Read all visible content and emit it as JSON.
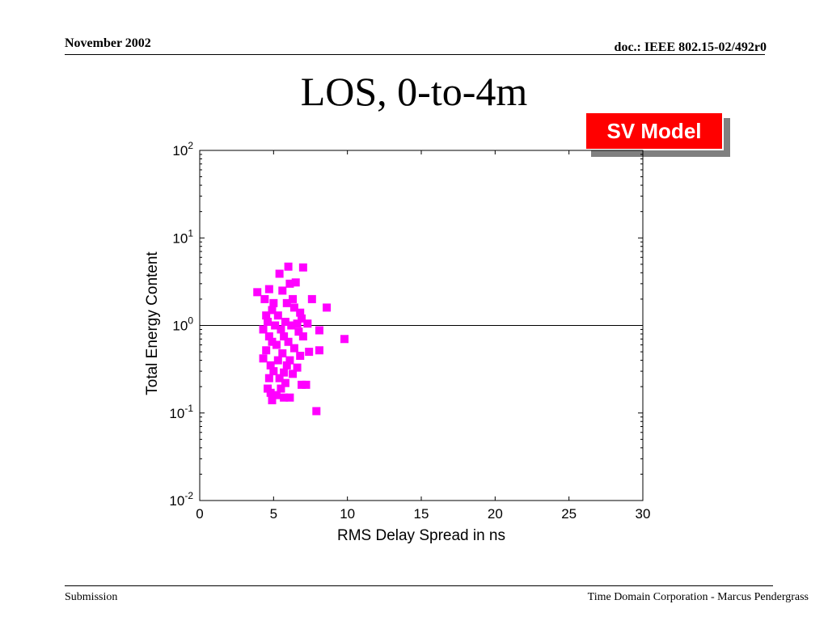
{
  "header": {
    "date": "November 2002",
    "doc_id": "doc.: IEEE 802.15-02/492r0"
  },
  "slide_title": "LOS, 0-to-4m",
  "badge": {
    "label": "SV Model",
    "background": "#ff0000"
  },
  "footer": {
    "left": "Submission",
    "right": "Time Domain Corporation - Marcus Pendergrass"
  },
  "chart_data": {
    "type": "scatter",
    "title": "",
    "xlabel": "RMS Delay Spread in ns",
    "ylabel": "Total Energy Content",
    "xlim": [
      0,
      30
    ],
    "ylim": [
      0.01,
      100
    ],
    "yscale": "log",
    "x_ticks": [
      "0",
      "5",
      "10",
      "15",
      "20",
      "25",
      "30"
    ],
    "y_ticks": [
      {
        "base": "10",
        "exp": "2"
      },
      {
        "base": "10",
        "exp": "1"
      },
      {
        "base": "10",
        "exp": "0"
      },
      {
        "base": "10",
        "exp": "-1"
      },
      {
        "base": "10",
        "exp": "-2"
      }
    ],
    "grid": false,
    "reference_line": {
      "y": 1
    },
    "marker": {
      "shape": "square",
      "color": "#ff00ff"
    },
    "series": [
      {
        "points": [
          [
            6.0,
            4.7
          ],
          [
            7.0,
            4.6
          ],
          [
            5.4,
            3.9
          ],
          [
            6.5,
            3.1
          ],
          [
            6.1,
            3.0
          ],
          [
            3.9,
            2.4
          ],
          [
            4.7,
            2.6
          ],
          [
            5.6,
            2.5
          ],
          [
            6.3,
            2.0
          ],
          [
            4.4,
            2.0
          ],
          [
            7.6,
            2.0
          ],
          [
            5.0,
            1.8
          ],
          [
            5.9,
            1.8
          ],
          [
            6.4,
            1.6
          ],
          [
            8.6,
            1.6
          ],
          [
            4.9,
            1.5
          ],
          [
            6.8,
            1.4
          ],
          [
            4.5,
            1.3
          ],
          [
            5.3,
            1.3
          ],
          [
            6.9,
            1.2
          ],
          [
            4.6,
            1.1
          ],
          [
            5.8,
            1.1
          ],
          [
            6.6,
            1.05
          ],
          [
            7.3,
            1.05
          ],
          [
            5.1,
            1.0
          ],
          [
            6.2,
            1.0
          ],
          [
            4.3,
            0.9
          ],
          [
            5.5,
            0.9
          ],
          [
            8.1,
            0.88
          ],
          [
            6.7,
            0.85
          ],
          [
            4.7,
            0.75
          ],
          [
            5.7,
            0.75
          ],
          [
            7.0,
            0.75
          ],
          [
            9.8,
            0.7
          ],
          [
            4.9,
            0.65
          ],
          [
            6.0,
            0.65
          ],
          [
            5.2,
            0.6
          ],
          [
            6.4,
            0.55
          ],
          [
            4.5,
            0.52
          ],
          [
            7.4,
            0.5
          ],
          [
            8.1,
            0.52
          ],
          [
            5.6,
            0.48
          ],
          [
            6.8,
            0.45
          ],
          [
            4.3,
            0.42
          ],
          [
            5.3,
            0.4
          ],
          [
            6.1,
            0.4
          ],
          [
            4.8,
            0.35
          ],
          [
            5.9,
            0.35
          ],
          [
            6.6,
            0.33
          ],
          [
            5.0,
            0.3
          ],
          [
            5.7,
            0.29
          ],
          [
            6.3,
            0.28
          ],
          [
            4.7,
            0.25
          ],
          [
            5.4,
            0.25
          ],
          [
            5.8,
            0.22
          ],
          [
            6.9,
            0.21
          ],
          [
            7.2,
            0.21
          ],
          [
            4.6,
            0.19
          ],
          [
            5.5,
            0.19
          ],
          [
            4.8,
            0.17
          ],
          [
            5.2,
            0.16
          ],
          [
            5.7,
            0.15
          ],
          [
            6.1,
            0.15
          ],
          [
            4.9,
            0.14
          ],
          [
            7.9,
            0.105
          ]
        ]
      }
    ]
  }
}
